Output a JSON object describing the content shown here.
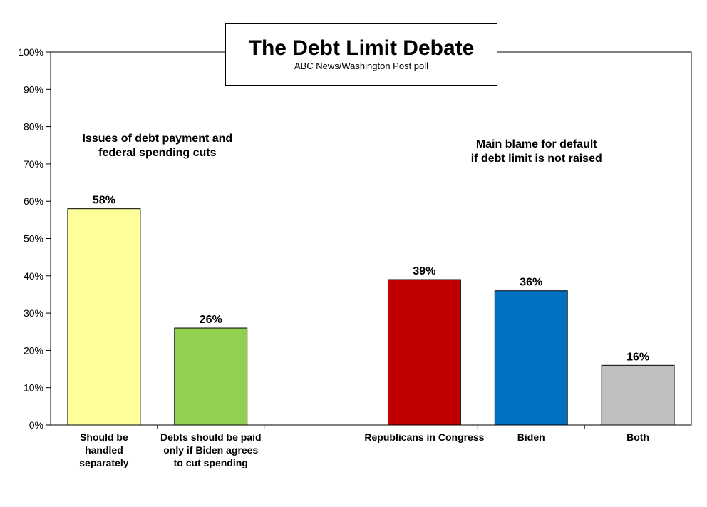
{
  "chart_data": {
    "type": "bar",
    "title": "The Debt Limit Debate",
    "subtitle": "ABC News/Washington  Post poll",
    "ylim": [
      0,
      100
    ],
    "y_ticks": [
      "0%",
      "10%",
      "20%",
      "30%",
      "40%",
      "50%",
      "60%",
      "70%",
      "80%",
      "90%",
      "100%"
    ],
    "grid": false,
    "groups": [
      {
        "label": [
          "Issues of debt payment and",
          "federal spending cuts"
        ],
        "bars": [
          {
            "category": [
              "Should be",
              "handled",
              "separately"
            ],
            "value": 58,
            "value_label": "58%",
            "color": "#FFFF99"
          },
          {
            "category": [
              "Debts should be paid",
              "only if Biden agrees",
              "to cut spending"
            ],
            "value": 26,
            "value_label": "26%",
            "color": "#92D050"
          }
        ]
      },
      {
        "label": [
          "Main blame for default",
          "if debt limit is not raised"
        ],
        "bars": [
          {
            "category": [
              "Republicans in Congress"
            ],
            "value": 39,
            "value_label": "39%",
            "color": "#C00000"
          },
          {
            "category": [
              "Biden"
            ],
            "value": 36,
            "value_label": "36%",
            "color": "#0070C0"
          },
          {
            "category": [
              "Both"
            ],
            "value": 16,
            "value_label": "16%",
            "color": "#BFBFBF"
          }
        ]
      }
    ]
  }
}
